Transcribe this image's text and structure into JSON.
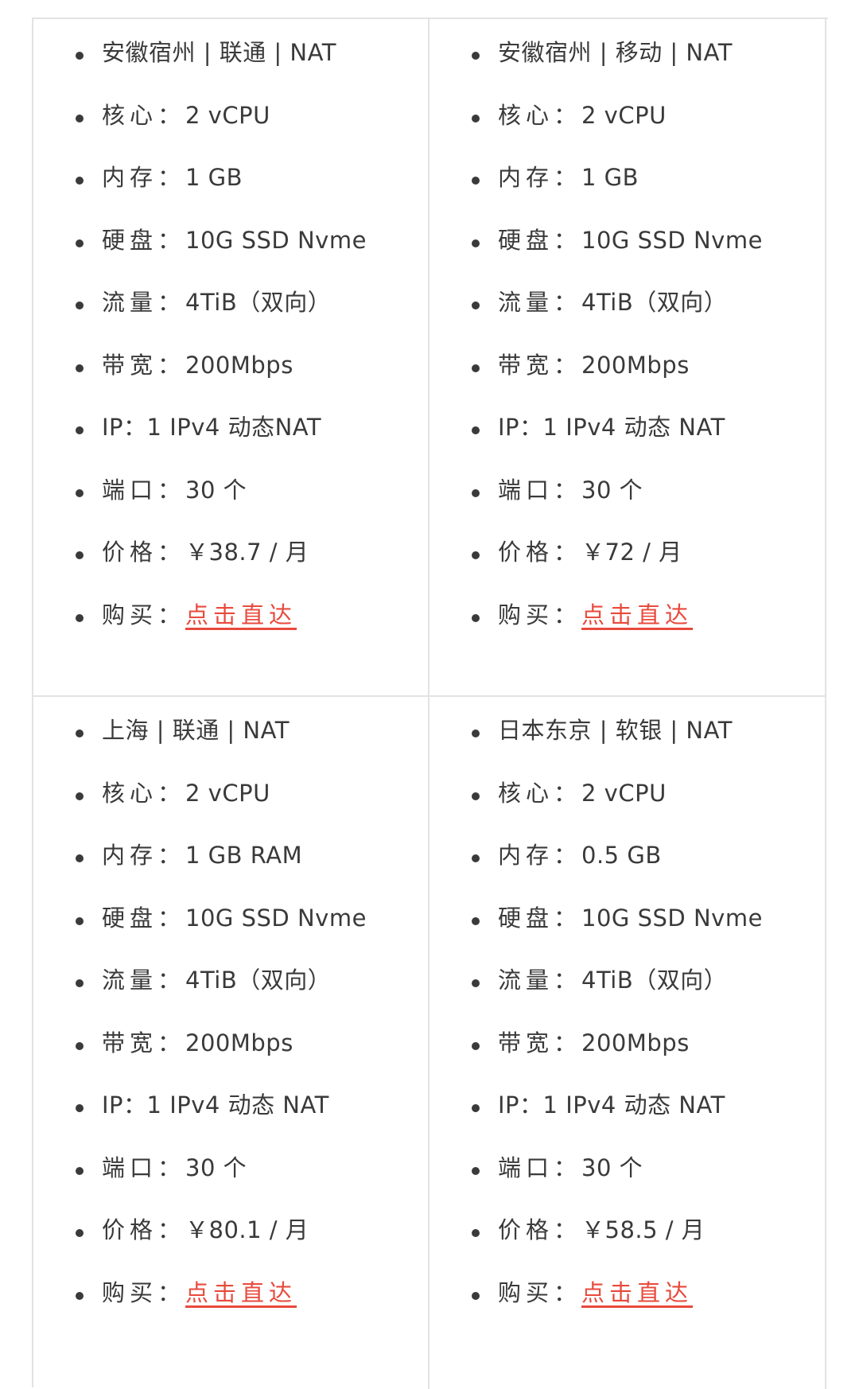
{
  "plans": [
    {
      "title": "安徽宿州 | 联通 | NAT",
      "core_label": "核心：",
      "core": "2 vCPU",
      "mem_label": "内存：",
      "mem": "1 GB",
      "disk_label": "硬盘：",
      "disk": "10G SSD Nvme",
      "traffic_label": "流量：",
      "traffic": "4TiB（双向）",
      "bw_label": "带宽：",
      "bw": "200Mbps",
      "ip_label": "IP：",
      "ip": "1 IPv4 动态NAT",
      "port_label": "端口：",
      "port": "30 个",
      "price_label": "价格：",
      "price": "￥38.7 / 月",
      "buy_label": "购买：",
      "buy_link": "点击直达"
    },
    {
      "title": "安徽宿州 | 移动 | NAT",
      "core_label": "核心：",
      "core": "2 vCPU",
      "mem_label": "内存：",
      "mem": "1 GB",
      "disk_label": "硬盘：",
      "disk": "10G SSD Nvme",
      "traffic_label": "流量：",
      "traffic": "4TiB（双向）",
      "bw_label": "带宽：",
      "bw": "200Mbps",
      "ip_label": "IP：",
      "ip": "1 IPv4 动态 NAT",
      "port_label": "端口：",
      "port": "30 个",
      "price_label": "价格：",
      "price": "￥72 / 月",
      "buy_label": "购买：",
      "buy_link": "点击直达"
    },
    {
      "title": "上海 | 联通 | NAT",
      "core_label": "核心：",
      "core": "2 vCPU",
      "mem_label": "内存：",
      "mem": "1 GB RAM",
      "disk_label": "硬盘：",
      "disk": "10G SSD Nvme",
      "traffic_label": "流量：",
      "traffic": "4TiB（双向）",
      "bw_label": "带宽：",
      "bw": "200Mbps",
      "ip_label": "IP：",
      "ip": "1 IPv4 动态 NAT",
      "port_label": "端口：",
      "port": "30 个",
      "price_label": "价格：",
      "price": "￥80.1 / 月",
      "buy_label": "购买：",
      "buy_link": "点击直达"
    },
    {
      "title": "日本东京 | 软银 | NAT",
      "core_label": "核心：",
      "core": "2 vCPU",
      "mem_label": "内存：",
      "mem": "0.5 GB",
      "disk_label": "硬盘：",
      "disk": "10G SSD Nvme",
      "traffic_label": "流量：",
      "traffic": "4TiB（双向）",
      "bw_label": "带宽：",
      "bw": "200Mbps",
      "ip_label": "IP：",
      "ip": "1 IPv4 动态 NAT",
      "port_label": "端口：",
      "port": "30 个",
      "price_label": "价格：",
      "price": "￥58.5 / 月",
      "buy_label": "购买：",
      "buy_link": "点击直达"
    }
  ],
  "colors": {
    "text": "#3a3a3a",
    "link": "#e84a3c",
    "border": "#e3e3e3"
  }
}
